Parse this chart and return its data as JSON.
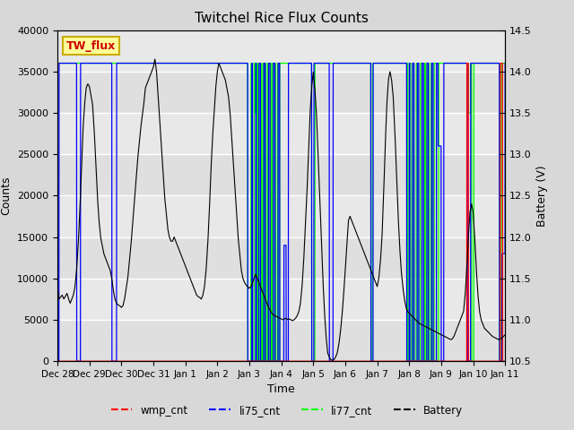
{
  "title": "Twitchel Rice Flux Counts",
  "xlabel": "Time",
  "ylabel_left": "Counts",
  "ylabel_right": "Battery (V)",
  "ylim_left": [
    0,
    40000
  ],
  "ylim_right": [
    10.5,
    14.5
  ],
  "bg_color": "#d8d8d8",
  "plot_bg_color": "#e8e8e8",
  "tw_flux_label": "TW_flux",
  "tw_flux_label_color": "#cc0000",
  "tw_flux_bg": "#ffff99",
  "tw_flux_border": "#ccaa00",
  "legend_entries": [
    "wmp_cnt",
    "li75_cnt",
    "li77_cnt",
    "Battery"
  ],
  "legend_colors": [
    "red",
    "blue",
    "lime",
    "black"
  ],
  "x_tick_labels": [
    "Dec 28",
    "Dec 29",
    "Dec 30",
    "Dec 31",
    "Jan 1",
    "Jan 2",
    "Jan 3",
    "Jan 4",
    "Jan 5",
    "Jan 6",
    "Jan 7",
    "Jan 8",
    "Jan 9",
    "Jan 10",
    "Jan 11"
  ],
  "x_tick_positions": [
    0,
    1,
    2,
    3,
    4,
    5,
    6,
    7,
    8,
    9,
    10,
    11,
    12,
    13,
    14
  ],
  "yticks_left": [
    0,
    5000,
    10000,
    15000,
    20000,
    25000,
    30000,
    35000,
    40000
  ],
  "yticks_right": [
    10.5,
    11.0,
    11.5,
    12.0,
    12.5,
    13.0,
    13.5,
    14.0,
    14.5
  ]
}
